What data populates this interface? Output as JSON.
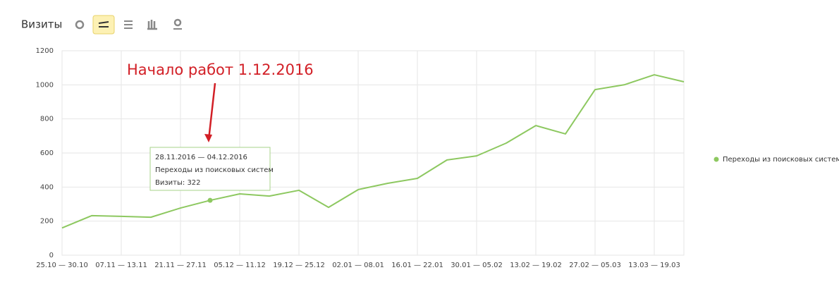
{
  "chart_data": {
    "type": "line",
    "title": "Визиты",
    "annotation": "Начало работ 1.12.2016",
    "categories": [
      "25.10 — 30.10",
      null,
      "07.11 — 13.11",
      null,
      "21.11 — 27.11",
      null,
      "05.12 — 11.12",
      null,
      "19.12 — 25.12",
      null,
      "02.01 — 08.01",
      null,
      "16.01 — 22.01",
      null,
      "30.01 — 05.02",
      null,
      "13.02 — 19.02",
      null,
      "27.02 — 05.03",
      null,
      "13.03 — 19.03",
      null
    ],
    "series": [
      {
        "name": "Переходы из поисковых систем",
        "color": "#8dc860",
        "values": [
          160,
          232,
          228,
          223,
          277,
          322,
          360,
          347,
          381,
          281,
          385,
          422,
          451,
          559,
          583,
          658,
          761,
          712,
          972,
          1001,
          1059,
          1018
        ]
      }
    ],
    "ylim": [
      0,
      1200
    ],
    "yticks": [
      0,
      200,
      400,
      600,
      800,
      1000,
      1200
    ],
    "grid": true,
    "legend": "right",
    "tooltip": {
      "index": 5,
      "lines": [
        "28.11.2016 — 04.12.2016",
        "Переходы из поисковых систем",
        "Визиты: 322"
      ]
    }
  }
}
